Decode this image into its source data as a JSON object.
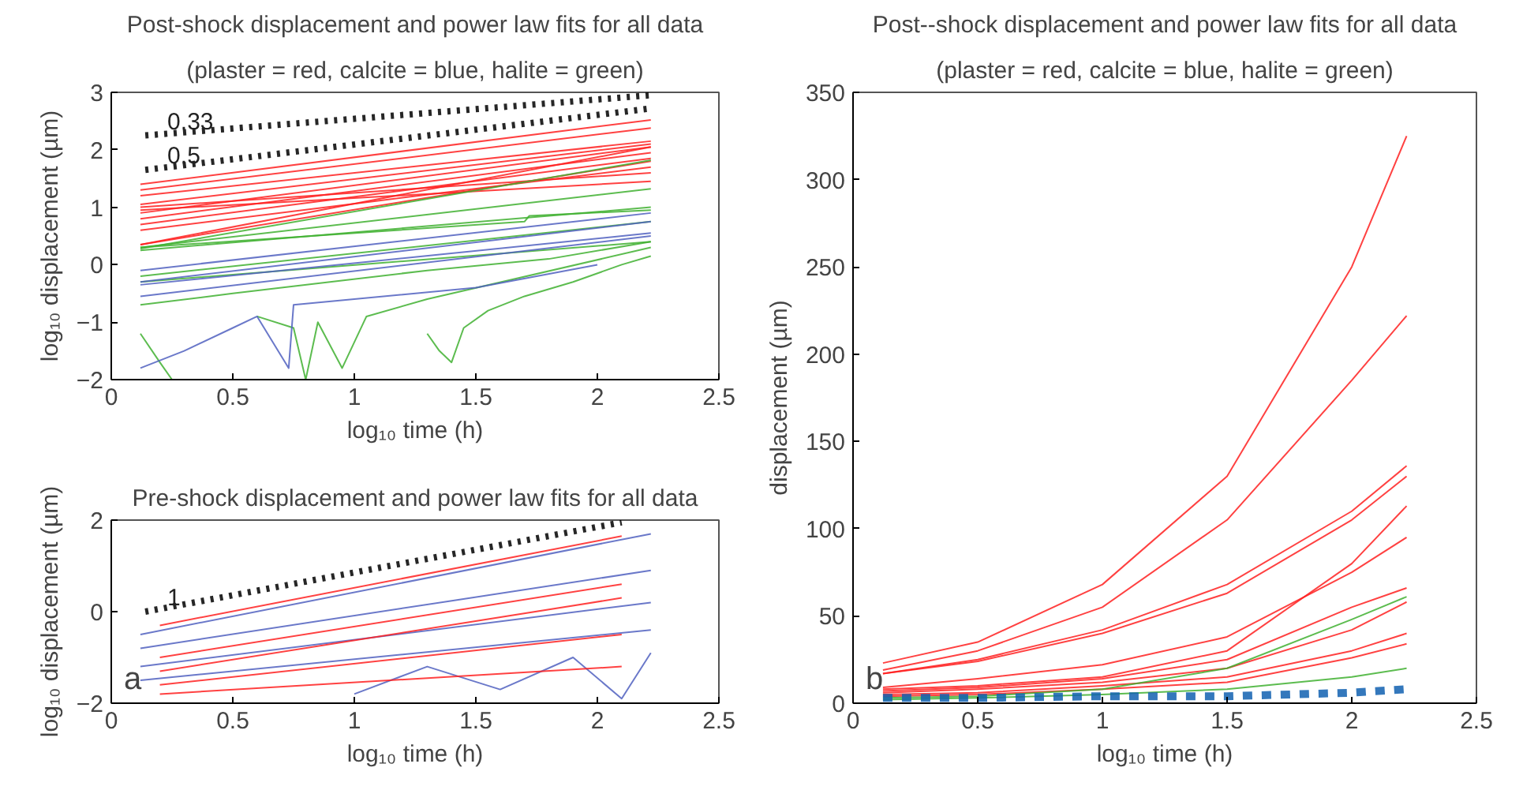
{
  "chart_data": [
    {
      "type": "line",
      "title": "Post-shock displacement and power law fits for all data",
      "subtitle": "(plaster = red, calcite = blue, halite = green)",
      "xlabel": "log₁₀ time (h)",
      "ylabel": "log₁₀ displacement (µm)",
      "xlim": [
        0,
        2.5
      ],
      "ylim": [
        -2,
        3
      ],
      "xticks": [
        0,
        0.5,
        1,
        1.5,
        2,
        2.5
      ],
      "yticks": [
        -2,
        -1,
        0,
        1,
        2,
        3
      ],
      "grid": false,
      "annotations": [
        "0.33",
        "0.5"
      ],
      "series": [
        {
          "color": "#000000",
          "line_style": "dotted",
          "x": [
            0.14,
            2.22
          ],
          "values": [
            2.25,
            2.95
          ]
        },
        {
          "color": "#000000",
          "line_style": "dotted",
          "x": [
            0.14,
            2.22
          ],
          "values": [
            1.65,
            2.72
          ]
        },
        {
          "color": "#ff2020",
          "x": [
            0.12,
            2.22
          ],
          "values": [
            1.4,
            2.52
          ]
        },
        {
          "color": "#ff2020",
          "x": [
            0.12,
            2.22
          ],
          "values": [
            1.3,
            2.38
          ]
        },
        {
          "color": "#ff2020",
          "x": [
            0.12,
            2.22
          ],
          "values": [
            1.2,
            2.15
          ]
        },
        {
          "color": "#ff2020",
          "x": [
            0.12,
            2.22
          ],
          "values": [
            1.05,
            2.1
          ]
        },
        {
          "color": "#ff2020",
          "x": [
            0.12,
            2.22
          ],
          "values": [
            0.9,
            2.05
          ]
        },
        {
          "color": "#ff2020",
          "x": [
            0.12,
            2.22
          ],
          "values": [
            0.8,
            1.95
          ]
        },
        {
          "color": "#ff2020",
          "x": [
            0.12,
            2.22
          ],
          "values": [
            0.7,
            1.85
          ]
        },
        {
          "color": "#ff2020",
          "x": [
            0.12,
            2.22
          ],
          "values": [
            0.6,
            1.7
          ]
        },
        {
          "color": "#ff2020",
          "x": [
            0.12,
            2.22
          ],
          "values": [
            0.35,
            2.05
          ]
        },
        {
          "color": "#ff2020",
          "x": [
            0.12,
            2.22
          ],
          "values": [
            0.35,
            1.8
          ]
        },
        {
          "color": "#ff2020",
          "x": [
            0.12,
            2.22
          ],
          "values": [
            1.0,
            1.6
          ]
        },
        {
          "color": "#ff2020",
          "x": [
            0.12,
            2.22
          ],
          "values": [
            0.95,
            1.45
          ]
        },
        {
          "color": "#40b030",
          "x": [
            0.12,
            2.22
          ],
          "values": [
            0.28,
            1.82
          ]
        },
        {
          "color": "#40b030",
          "x": [
            0.12,
            2.22
          ],
          "values": [
            0.3,
            1.32
          ]
        },
        {
          "color": "#40b030",
          "x": [
            0.12,
            2.22
          ],
          "values": [
            0.25,
            1.0
          ]
        },
        {
          "color": "#40b030",
          "x": [
            0.12,
            1.7,
            1.72,
            2.22
          ],
          "values": [
            0.3,
            0.75,
            0.85,
            0.95
          ]
        },
        {
          "color": "#40b030",
          "x": [
            0.12,
            2.22
          ],
          "values": [
            -0.2,
            0.75
          ]
        },
        {
          "color": "#40b030",
          "x": [
            0.12,
            2.22
          ],
          "values": [
            -0.3,
            0.4
          ]
        },
        {
          "color": "#40b030",
          "x": [
            0.12,
            0.5,
            0.9,
            1.3,
            1.8,
            2.22
          ],
          "values": [
            -0.7,
            -0.5,
            -0.3,
            -0.1,
            0.1,
            0.4
          ]
        },
        {
          "color": "#40b030",
          "x": [
            1.3,
            1.35,
            1.4,
            1.45,
            1.55,
            1.7,
            1.9,
            2.1,
            2.22
          ],
          "values": [
            -1.2,
            -1.5,
            -1.7,
            -1.1,
            -0.8,
            -0.55,
            -0.3,
            0.0,
            0.15
          ]
        },
        {
          "color": "#40b030",
          "x": [
            0.12,
            0.2,
            0.25
          ],
          "values": [
            -1.2,
            -1.7,
            -2.0
          ]
        },
        {
          "color": "#40b030",
          "x": [
            0.6,
            0.75,
            0.8,
            0.85,
            0.95,
            1.05,
            1.3,
            2.22
          ],
          "values": [
            -0.9,
            -1.1,
            -2.0,
            -1.0,
            -1.8,
            -0.9,
            -0.6,
            0.3
          ]
        },
        {
          "color": "#5060c0",
          "x": [
            0.12,
            2.22
          ],
          "values": [
            -0.1,
            0.9
          ]
        },
        {
          "color": "#5060c0",
          "x": [
            0.12,
            2.22
          ],
          "values": [
            -0.3,
            0.75
          ]
        },
        {
          "color": "#5060c0",
          "x": [
            0.12,
            2.22
          ],
          "values": [
            -0.35,
            0.55
          ]
        },
        {
          "color": "#5060c0",
          "x": [
            0.12,
            2.22
          ],
          "values": [
            -0.55,
            0.5
          ]
        },
        {
          "color": "#5060c0",
          "x": [
            0.12,
            0.3,
            0.5,
            0.6,
            0.73,
            0.75,
            1.5,
            2.0
          ],
          "values": [
            -1.8,
            -1.5,
            -1.1,
            -0.9,
            -1.8,
            -0.7,
            -0.4,
            0.0
          ]
        }
      ]
    },
    {
      "type": "line",
      "title": "Pre-shock displacement and power law fits for all data",
      "xlabel": "log₁₀ time (h)",
      "ylabel": "log₁₀ displacement (µm)",
      "xlim": [
        0,
        2.5
      ],
      "ylim": [
        -2,
        2
      ],
      "xticks": [
        0,
        0.5,
        1,
        1.5,
        2,
        2.5
      ],
      "yticks": [
        -2,
        0,
        2
      ],
      "grid": false,
      "annotations": [
        "1",
        "a"
      ],
      "series": [
        {
          "color": "#5060c0",
          "x": [
            0.12,
            2.22
          ],
          "values": [
            -0.5,
            1.7
          ]
        },
        {
          "color": "#5060c0",
          "x": [
            0.12,
            2.22
          ],
          "values": [
            -0.8,
            0.9
          ]
        },
        {
          "color": "#5060c0",
          "x": [
            0.12,
            2.22
          ],
          "values": [
            -1.2,
            0.2
          ]
        },
        {
          "color": "#5060c0",
          "x": [
            0.12,
            2.22
          ],
          "values": [
            -1.5,
            -0.4
          ]
        },
        {
          "color": "#5060c0",
          "x": [
            1.0,
            1.3,
            1.6,
            1.9,
            2.1,
            2.22
          ],
          "values": [
            -1.8,
            -1.2,
            -1.7,
            -1.0,
            -1.9,
            -0.9
          ]
        },
        {
          "color": "#ff2020",
          "x": [
            0.2,
            2.1
          ],
          "values": [
            -0.3,
            1.65
          ]
        },
        {
          "color": "#ff2020",
          "x": [
            0.2,
            2.1
          ],
          "values": [
            -1.0,
            0.6
          ]
        },
        {
          "color": "#ff2020",
          "x": [
            0.2,
            2.1
          ],
          "values": [
            -1.3,
            0.3
          ]
        },
        {
          "color": "#ff2020",
          "x": [
            0.2,
            2.1
          ],
          "values": [
            -1.6,
            -0.5
          ]
        },
        {
          "color": "#ff2020",
          "x": [
            0.2,
            2.1
          ],
          "values": [
            -1.8,
            -1.2
          ]
        },
        {
          "color": "#000000",
          "line_style": "dotted",
          "x": [
            0.14,
            2.1
          ],
          "values": [
            0.0,
            1.95
          ]
        }
      ]
    },
    {
      "type": "line",
      "title": "Post--shock displacement and power law fits for all data",
      "subtitle": "(plaster = red, calcite = blue, halite = green)",
      "xlabel": "log₁₀ time (h)",
      "ylabel": "displacement (µm)",
      "xlim": [
        0,
        2.5
      ],
      "ylim": [
        0,
        350
      ],
      "xticks": [
        0,
        0.5,
        1,
        1.5,
        2,
        2.5
      ],
      "yticks": [
        0,
        50,
        100,
        150,
        200,
        250,
        300,
        350
      ],
      "grid": false,
      "annotations": [
        "b"
      ],
      "series": [
        {
          "color": "#ff2020",
          "x": [
            0.12,
            0.5,
            1,
            1.5,
            2,
            2.22
          ],
          "values": [
            23,
            35,
            68,
            130,
            250,
            325
          ]
        },
        {
          "color": "#ff2020",
          "x": [
            0.12,
            0.5,
            1,
            1.5,
            2,
            2.22
          ],
          "values": [
            19,
            30,
            55,
            105,
            185,
            222
          ]
        },
        {
          "color": "#ff2020",
          "x": [
            0.12,
            0.5,
            1,
            1.5,
            2,
            2.22
          ],
          "values": [
            17,
            25,
            42,
            68,
            110,
            136
          ]
        },
        {
          "color": "#ff2020",
          "x": [
            0.12,
            0.5,
            1,
            1.5,
            2,
            2.22
          ],
          "values": [
            17,
            24,
            40,
            63,
            105,
            130
          ]
        },
        {
          "color": "#ff2020",
          "x": [
            0.12,
            0.5,
            1,
            1.5,
            2,
            2.22
          ],
          "values": [
            9,
            14,
            22,
            38,
            75,
            95
          ]
        },
        {
          "color": "#ff2020",
          "x": [
            0.12,
            0.5,
            1,
            1.5,
            2,
            2.22
          ],
          "values": [
            8,
            10,
            15,
            30,
            80,
            113
          ]
        },
        {
          "color": "#ff2020",
          "x": [
            0.12,
            0.5,
            1,
            1.5,
            2,
            2.22
          ],
          "values": [
            7,
            9,
            14,
            25,
            55,
            66
          ]
        },
        {
          "color": "#ff2020",
          "x": [
            0.12,
            0.5,
            1,
            1.5,
            2,
            2.22
          ],
          "values": [
            6,
            8,
            12,
            20,
            42,
            58
          ]
        },
        {
          "color": "#ff2020",
          "x": [
            0.12,
            0.5,
            1,
            1.5,
            2,
            2.22
          ],
          "values": [
            5,
            6,
            10,
            15,
            30,
            40
          ]
        },
        {
          "color": "#ff2020",
          "x": [
            0.12,
            0.5,
            1,
            1.5,
            2,
            2.22
          ],
          "values": [
            4,
            5,
            8,
            12,
            26,
            34
          ]
        },
        {
          "color": "#40b030",
          "x": [
            0.12,
            0.5,
            1,
            1.5,
            2,
            2.22
          ],
          "values": [
            3,
            4,
            8,
            20,
            48,
            61
          ]
        },
        {
          "color": "#40b030",
          "x": [
            0.12,
            0.5,
            1,
            1.5,
            2,
            2.22
          ],
          "values": [
            2,
            3,
            5,
            8,
            15,
            20
          ]
        },
        {
          "color": "#1060b0",
          "line_style": "dashed",
          "x": [
            0.12,
            0.5,
            1,
            1.5,
            2,
            2.22
          ],
          "values": [
            3,
            3,
            4,
            4,
            6,
            8
          ]
        }
      ]
    }
  ]
}
